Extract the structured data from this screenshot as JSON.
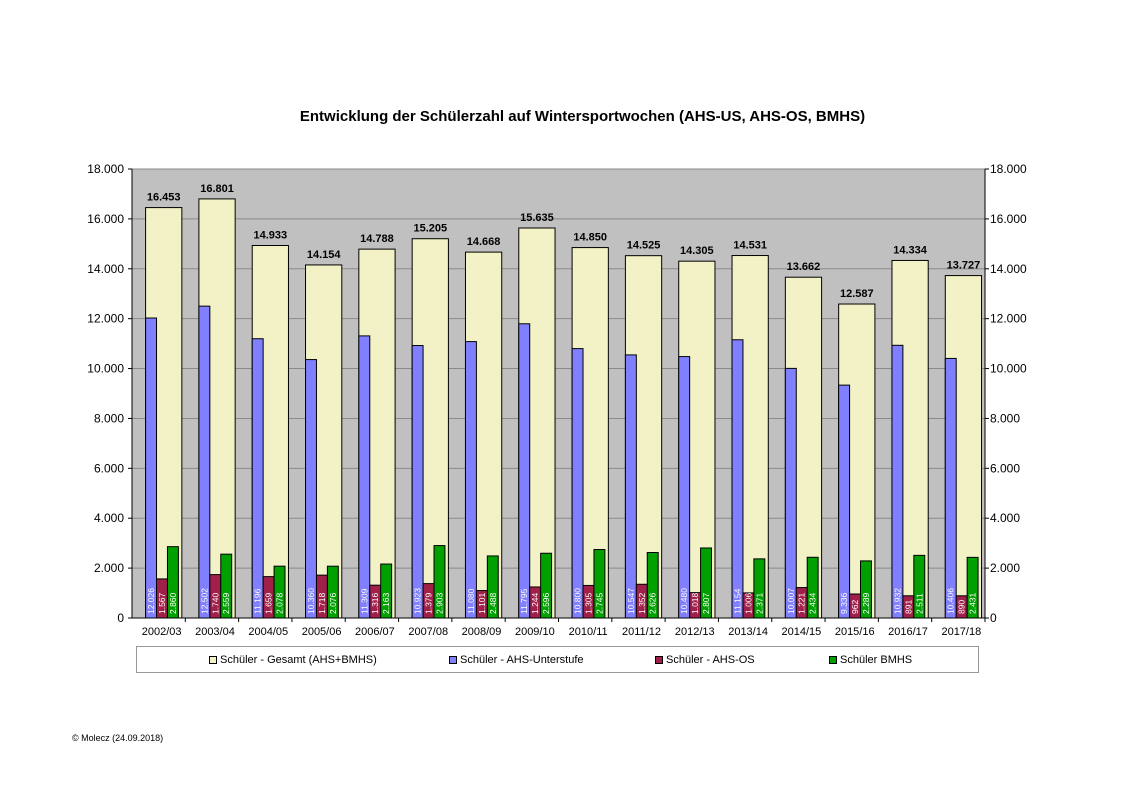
{
  "title": "Entwicklung der Schülerzahl auf Wintersportwochen (AHS-US,  AHS-OS, BMHS)",
  "copyright": "© Molecz (24.09.2018)",
  "colors": {
    "plot_bg": "#c0c0c0",
    "gesamt": "#f2f2c6",
    "ahs_us": "#8080ff",
    "ahs_os": "#a0204a",
    "bmhs": "#00a000"
  },
  "legend": {
    "gesamt": "Schüler - Gesamt (AHS+BMHS)",
    "ahs_us": "Schüler - AHS-Unterstufe",
    "ahs_os": "Schüler - AHS-OS",
    "bmhs": "Schüler BMHS"
  },
  "chart_data": {
    "type": "bar",
    "categories": [
      "2002/03",
      "2003/04",
      "2004/05",
      "2005/06",
      "2006/07",
      "2007/08",
      "2008/09",
      "2009/10",
      "2010/11",
      "2011/12",
      "2012/13",
      "2013/14",
      "2014/15",
      "2015/16",
      "2016/17",
      "2017/18"
    ],
    "series": [
      {
        "name": "Schüler - Gesamt (AHS+BMHS)",
        "key": "gesamt",
        "values": [
          16453,
          16801,
          14933,
          14154,
          14788,
          15205,
          14668,
          15635,
          14850,
          14525,
          14305,
          14531,
          13662,
          12587,
          14334,
          13727
        ],
        "labels": [
          "16.453",
          "16.801",
          "14.933",
          "14.154",
          "14.788",
          "15.205",
          "14.668",
          "15.635",
          "14.850",
          "14.525",
          "14.305",
          "14.531",
          "13.662",
          "12.587",
          "14.334",
          "13.727"
        ]
      },
      {
        "name": "Schüler - AHS-Unterstufe",
        "key": "ahs_us",
        "values": [
          12026,
          12502,
          11196,
          10360,
          11309,
          10923,
          11080,
          11795,
          10800,
          10547,
          10480,
          11154,
          10007,
          9336,
          10932,
          10406
        ],
        "labels": [
          "12.026",
          "12.502",
          "11.196",
          "10.360",
          "11.309",
          "10.923",
          "11.080",
          "11.795",
          "10.800",
          "10.547",
          "10.480",
          "11.154",
          "10.007",
          "9.336",
          "10.932",
          "10.406"
        ]
      },
      {
        "name": "Schüler - AHS-OS",
        "key": "ahs_os",
        "values": [
          1567,
          1740,
          1659,
          1718,
          1316,
          1379,
          1101,
          1244,
          1305,
          1352,
          1018,
          1006,
          1221,
          962,
          891,
          890
        ],
        "labels": [
          "1.567",
          "1.740",
          "1.659",
          "1.718",
          "1.316",
          "1.379",
          "1.101",
          "1.244",
          "1.305",
          "1.352",
          "1.018",
          "1.006",
          "1.221",
          "962",
          "891",
          "890"
        ]
      },
      {
        "name": "Schüler BMHS",
        "key": "bmhs",
        "values": [
          2860,
          2559,
          2078,
          2076,
          2163,
          2903,
          2488,
          2596,
          2745,
          2626,
          2807,
          2371,
          2434,
          2289,
          2511,
          2431
        ],
        "labels": [
          "2.860",
          "2.559",
          "2.078",
          "2.076",
          "2.163",
          "2.903",
          "2.488",
          "2.596",
          "2.745",
          "2.626",
          "2.807",
          "2.371",
          "2.434",
          "2.289",
          "2.511",
          "2.431"
        ]
      }
    ],
    "ylim": [
      0,
      18000
    ],
    "yticks": [
      0,
      2000,
      4000,
      6000,
      8000,
      10000,
      12000,
      14000,
      16000,
      18000
    ],
    "ytick_labels": [
      "0",
      "2.000",
      "4.000",
      "6.000",
      "8.000",
      "10.000",
      "12.000",
      "14.000",
      "16.000",
      "18.000"
    ],
    "grid": true,
    "legend_position": "bottom",
    "secondary_y_axis": true
  }
}
